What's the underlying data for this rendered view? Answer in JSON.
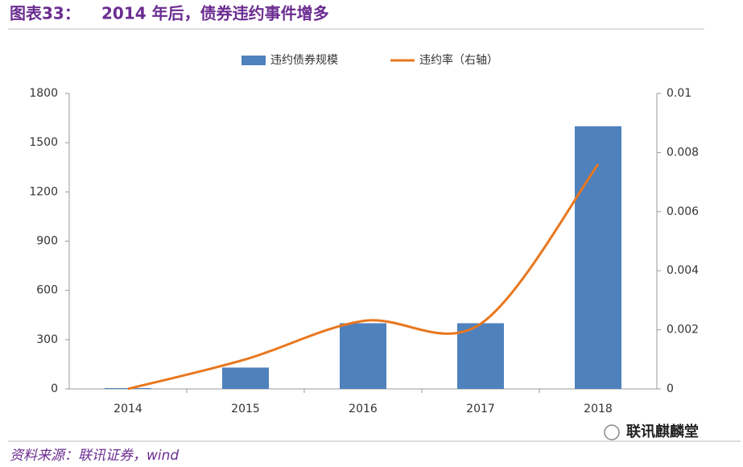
{
  "chart_data": {
    "type": "bar-line",
    "title_label": "图表33：",
    "title": "2014 年后，债券违约事件增多",
    "source": "资料来源：联讯证券，wind",
    "watermark": "联讯麒麟堂",
    "categories": [
      "2014",
      "2015",
      "2016",
      "2017",
      "2018"
    ],
    "series": [
      {
        "name": "违约债券规模",
        "type": "bar",
        "color": "#4f81bd",
        "values": [
          5,
          130,
          400,
          400,
          1600
        ]
      },
      {
        "name": "违约率（右轴）",
        "type": "line",
        "axis": "y2",
        "color": "#e8771e",
        "values": [
          0,
          0.001,
          0.0023,
          0.0022,
          0.0076
        ]
      }
    ],
    "ylim": [
      0,
      1800
    ],
    "yticks": [
      0,
      300,
      600,
      900,
      1200,
      1500,
      1800
    ],
    "y2lim": [
      0,
      0.01
    ],
    "y2ticks": [
      0,
      0.002,
      0.004,
      0.006,
      0.008,
      0.01
    ],
    "grid": false,
    "legend": "top"
  }
}
